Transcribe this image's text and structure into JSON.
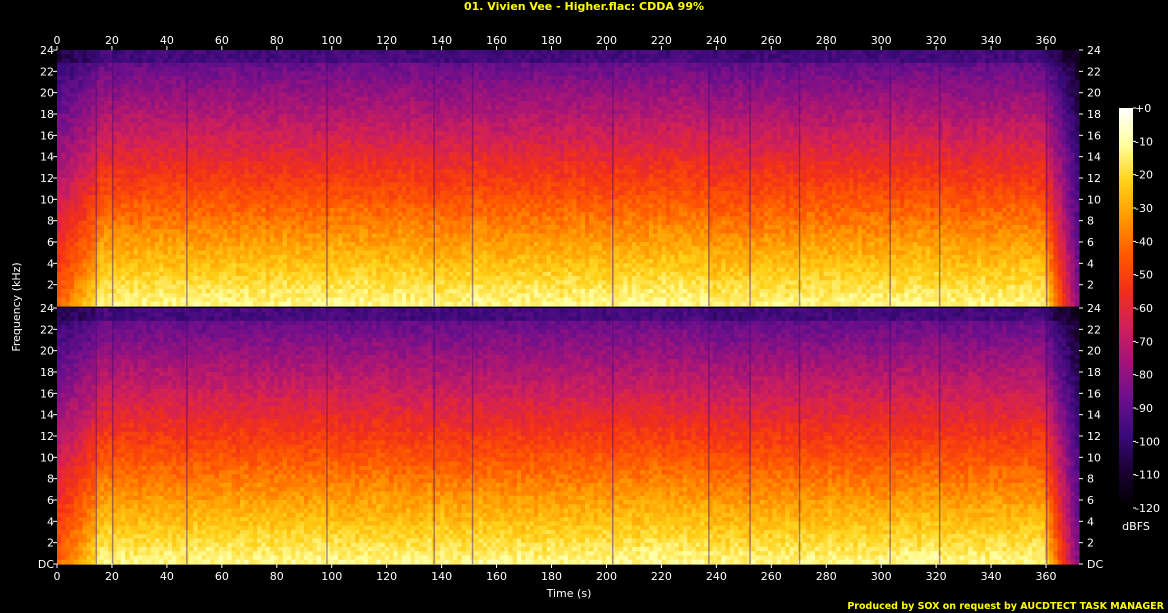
{
  "chart_data": {
    "type": "heatmap",
    "title": "01. Vivien Vee - Higher.flac: CDDA 99%",
    "xlabel": "Time (s)",
    "ylabel": "Frequency (kHz)",
    "xlim": [
      0,
      372
    ],
    "ylim": [
      0,
      24
    ],
    "x_ticks": [
      "0",
      "20",
      "40",
      "60",
      "80",
      "100",
      "120",
      "140",
      "160",
      "180",
      "200",
      "220",
      "240",
      "260",
      "280",
      "300",
      "320",
      "340",
      "360"
    ],
    "y_ticks": [
      "DC",
      "2",
      "4",
      "6",
      "8",
      "10",
      "12",
      "14",
      "16",
      "18",
      "20",
      "22",
      "24"
    ],
    "channels": [
      {
        "name": "upper channel"
      },
      {
        "name": "lower channel"
      }
    ],
    "colorbar": {
      "label": "dBFS",
      "ticks": [
        "+0",
        "-10",
        "-20",
        "-30",
        "-40",
        "-50",
        "-60",
        "-70",
        "-80",
        "-90",
        "-100",
        "-110",
        "-120"
      ],
      "range": [
        -120,
        0
      ],
      "colors": [
        "#000000",
        "#1a0030",
        "#3a0a7a",
        "#6b0f8c",
        "#a0147a",
        "#d0205a",
        "#f23018",
        "#ff5a00",
        "#ff9a00",
        "#ffd21a",
        "#ffffa0",
        "#ffffff"
      ]
    },
    "segments_s": [
      {
        "start": 0,
        "end": 14,
        "energy": 0.62
      },
      {
        "start": 14,
        "end": 20,
        "energy": 0.9
      },
      {
        "start": 20,
        "end": 47,
        "energy": 0.88
      },
      {
        "start": 47,
        "end": 98,
        "energy": 0.93
      },
      {
        "start": 98,
        "end": 137,
        "energy": 0.95
      },
      {
        "start": 137,
        "end": 151,
        "energy": 0.86
      },
      {
        "start": 151,
        "end": 202,
        "energy": 0.93
      },
      {
        "start": 202,
        "end": 237,
        "energy": 0.97
      },
      {
        "start": 237,
        "end": 252,
        "energy": 0.8
      },
      {
        "start": 252,
        "end": 270,
        "energy": 0.85
      },
      {
        "start": 270,
        "end": 303,
        "energy": 0.92
      },
      {
        "start": 303,
        "end": 321,
        "energy": 0.93
      },
      {
        "start": 321,
        "end": 360,
        "energy": 0.9
      },
      {
        "start": 360,
        "end": 372,
        "energy": 0.55
      }
    ],
    "cutoff_khz": 22.6,
    "credit": "Produced by SOX on request by AUCDTECT TASK MANAGER"
  }
}
